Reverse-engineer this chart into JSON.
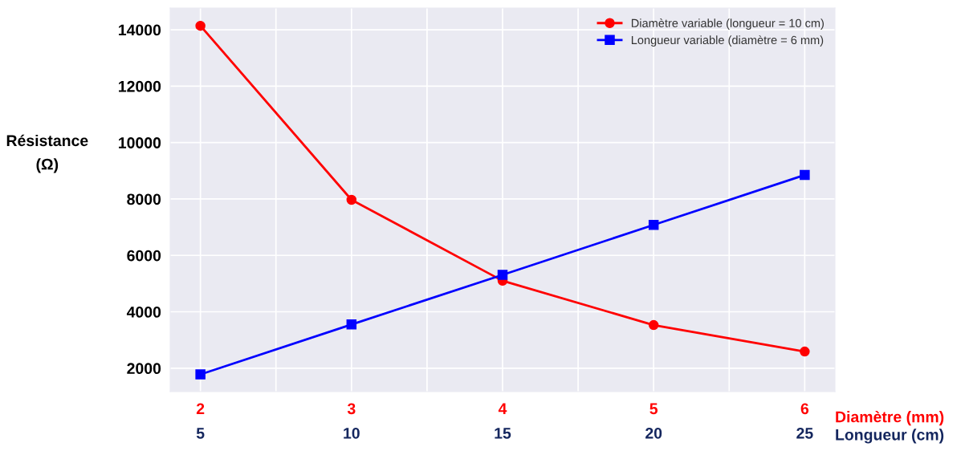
{
  "chart_data": {
    "type": "line",
    "xlabel": "Diamètre (mm)",
    "x2label": "Longueur (cm)",
    "ylabel": "Résistance\n(Ω)",
    "xlim": [
      1.8,
      6.2
    ],
    "xticks": [
      2,
      {
        "value": 2.5,
        "label": null
      },
      3,
      {
        "value": 3.5,
        "label": null
      },
      4,
      {
        "value": 4.5,
        "label": null
      },
      5,
      {
        "value": 5.5,
        "label": null
      },
      6
    ],
    "x2lim": [
      4,
      26
    ],
    "x2ticks": [
      5,
      10,
      15,
      20,
      25
    ],
    "ylim": [
      1170,
      14770
    ],
    "yticks": [
      2000,
      4000,
      6000,
      8000,
      10000,
      12000,
      14000
    ],
    "grid": true,
    "legend": "top right",
    "line_style": "solid",
    "series": [
      {
        "name": "Diamètre variable (longueur = 10 cm)",
        "color": "#ff0000",
        "marker": "circle",
        "x": [
          2,
          3,
          4,
          5,
          6
        ],
        "values": [
          14140,
          7970,
          5100,
          3530,
          2590
        ]
      },
      {
        "name": "Longueur variable (diamètre = 6 mm)",
        "color": "#0000ff",
        "marker": "square",
        "axis": "x2",
        "x": [
          5,
          10,
          15,
          20,
          25
        ],
        "values": [
          1780,
          3550,
          5310,
          7080,
          8850
        ]
      }
    ]
  }
}
